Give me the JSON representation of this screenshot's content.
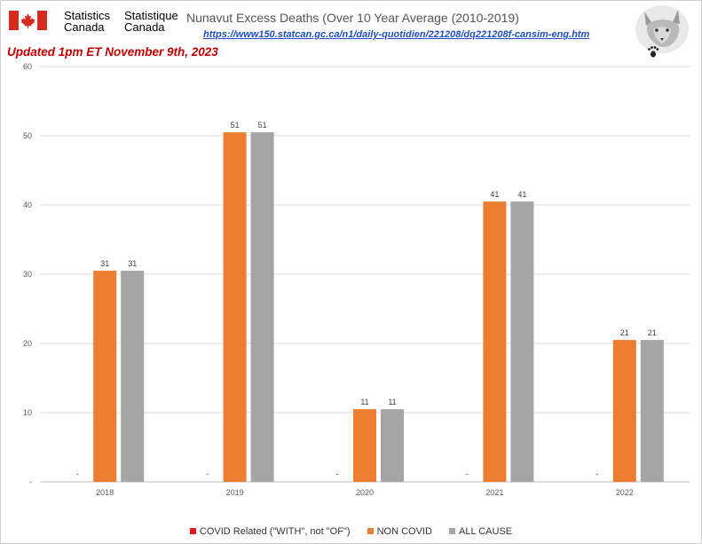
{
  "header": {
    "org_en_line1": "Statistics",
    "org_en_line2": "Canada",
    "org_fr_line1": "Statistique",
    "org_fr_line2": "Canada",
    "title": "Nunavut Excess Deaths (Over 10 Year Average (2010-2019)",
    "source_link": "https://www150.statcan.gc.ca/n1/daily-quotidien/221208/dq221208f-cansim-eng.htm",
    "updated": "Updated 1pm ET November 9th, 2023"
  },
  "colors": {
    "covid": "#e8141e",
    "non_covid": "#ed7d31",
    "all_cause": "#a5a5a5",
    "flag_red": "#d52b1e"
  },
  "icons": [
    "canada-flag-icon",
    "wolf-logo-icon"
  ],
  "chart_data": {
    "type": "bar",
    "categories": [
      "2018",
      "2019",
      "2020",
      "2021",
      "2022"
    ],
    "series": [
      {
        "name": "COVID Related (\"WITH\", not \"OF\")",
        "values": [
          0,
          0,
          0,
          0,
          0
        ],
        "labels": [
          "-",
          "-",
          "-",
          "-",
          "-"
        ]
      },
      {
        "name": "NON COVID",
        "values": [
          30.5,
          50.5,
          10.5,
          40.5,
          20.5
        ],
        "labels": [
          "31",
          "51",
          "11",
          "41",
          "21"
        ]
      },
      {
        "name": "ALL CAUSE",
        "values": [
          30.5,
          50.5,
          10.5,
          40.5,
          20.5
        ],
        "labels": [
          "31",
          "51",
          "11",
          "41",
          "21"
        ]
      }
    ],
    "ylim": [
      0,
      60
    ],
    "yticks": [
      "-",
      "10",
      "20",
      "30",
      "40",
      "50",
      "60"
    ],
    "grid": true,
    "legend_position": "bottom"
  }
}
